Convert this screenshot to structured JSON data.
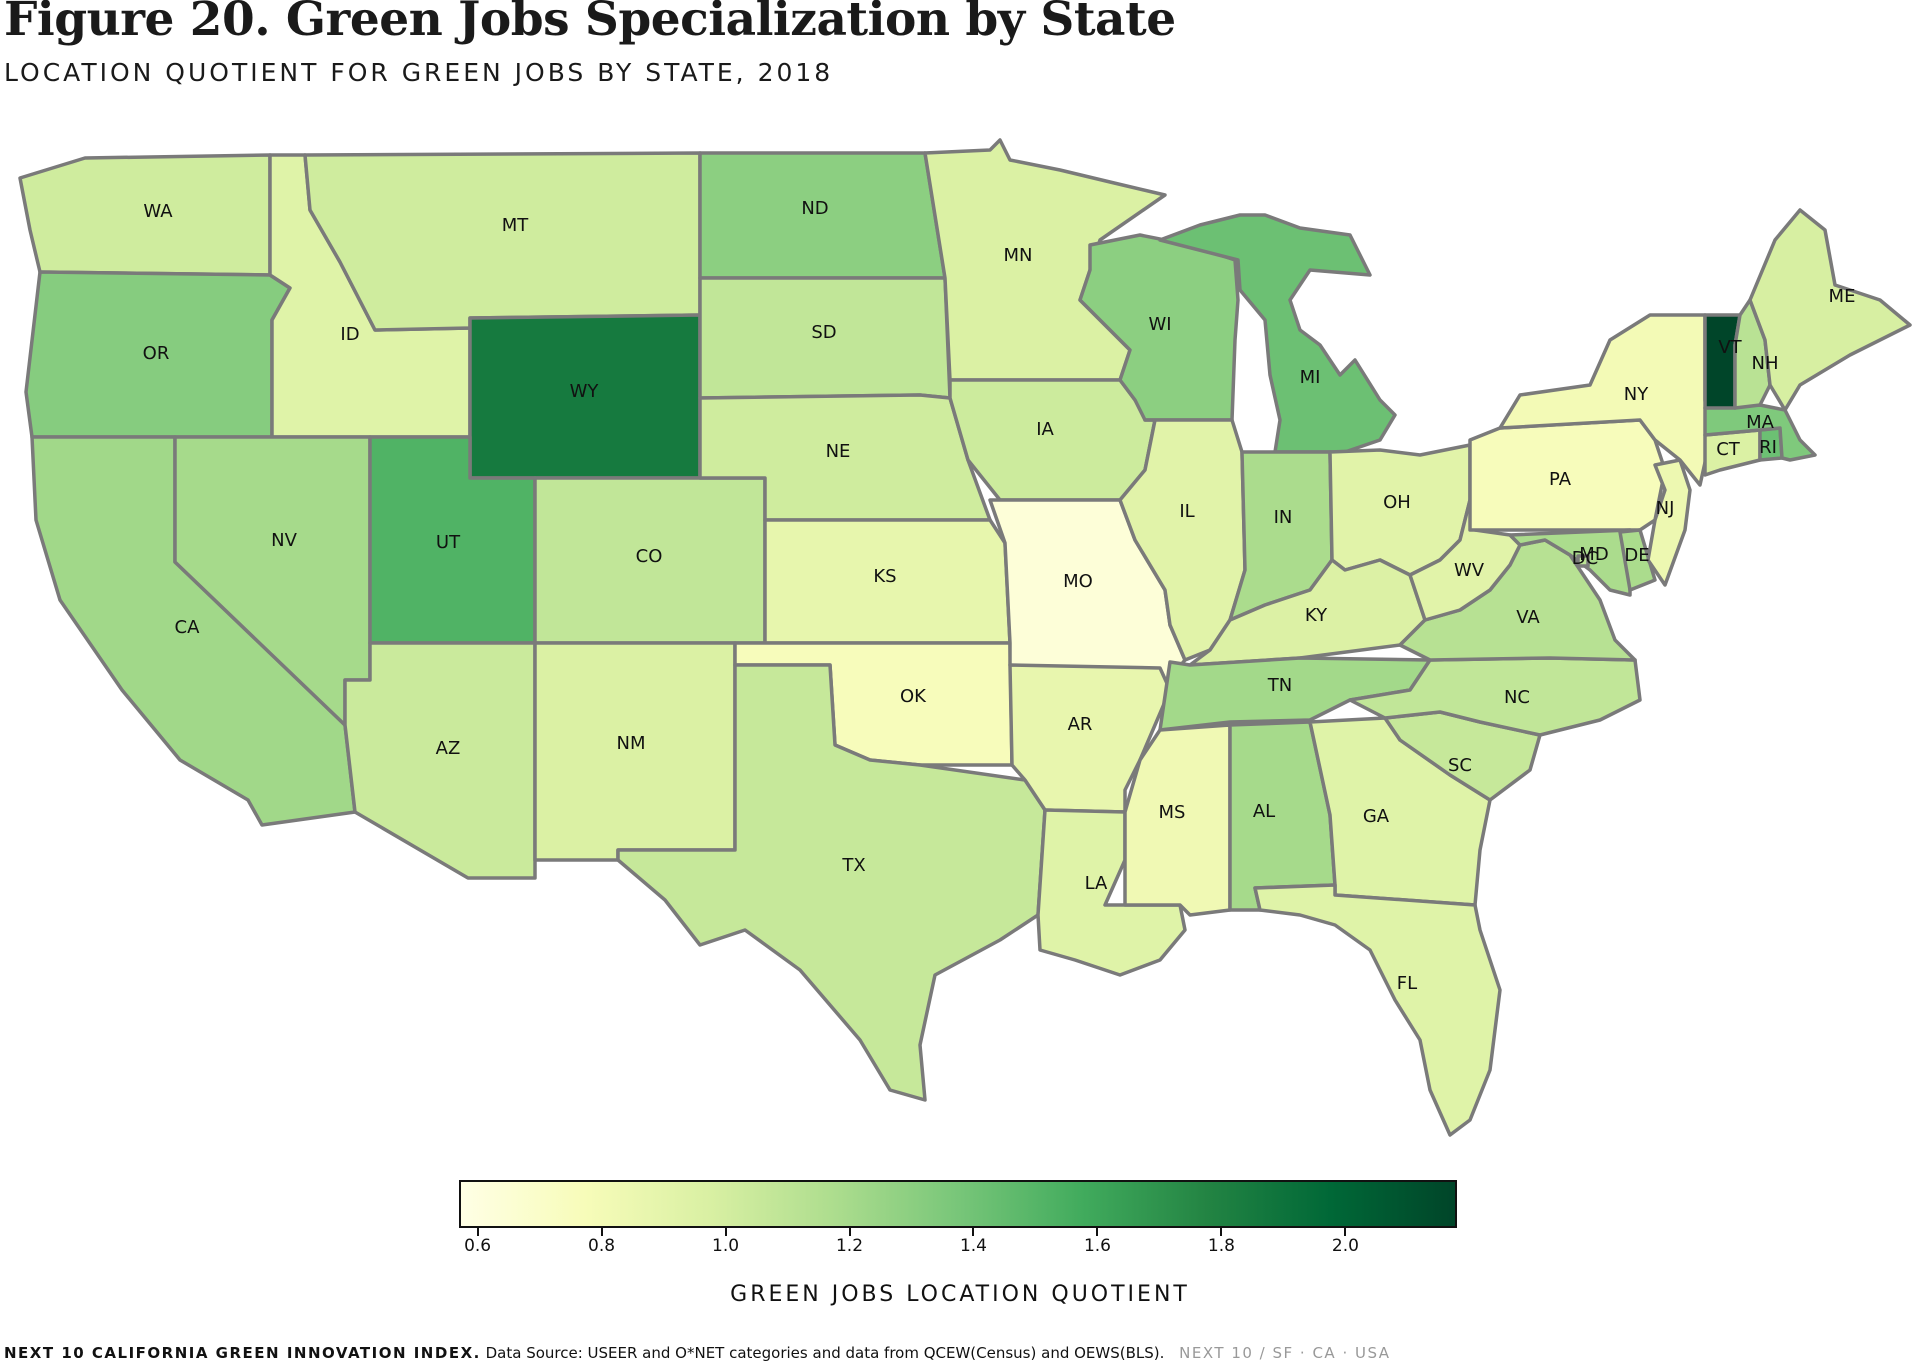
{
  "figure": {
    "title": "Figure 20. Green Jobs Specialization by State",
    "subtitle": "LOCATION QUOTIENT FOR GREEN JOBS BY STATE, 2018"
  },
  "colorbar": {
    "title": "GREEN JOBS LOCATION QUOTIENT",
    "min": 0.57,
    "max": 2.18,
    "ticks": [
      "0.6",
      "0.8",
      "1.0",
      "1.2",
      "1.4",
      "1.6",
      "1.8",
      "2.0"
    ],
    "colormap": "YlGn",
    "stops": [
      "#ffffe5",
      "#f7fcb9",
      "#d9f0a3",
      "#addd8e",
      "#78c679",
      "#41ab5d",
      "#238443",
      "#006837",
      "#004529"
    ]
  },
  "footer": {
    "source_label": "NEXT 10 CALIFORNIA GREEN INNOVATION INDEX.",
    "source_text": "Data Source: USEER and O*NET categories and data from QCEW(Census) and OEWS(BLS).",
    "brand": "NEXT 10  /  SF · CA · USA"
  },
  "chart_data": {
    "type": "choropleth",
    "states": [
      {
        "abbr": "WA",
        "value": 1.02
      },
      {
        "abbr": "OR",
        "value": 1.32
      },
      {
        "abbr": "CA",
        "value": 1.22
      },
      {
        "abbr": "ID",
        "value": 0.93
      },
      {
        "abbr": "NV",
        "value": 1.2
      },
      {
        "abbr": "MT",
        "value": 1.02
      },
      {
        "abbr": "WY",
        "value": 1.85
      },
      {
        "abbr": "UT",
        "value": 1.52
      },
      {
        "abbr": "AZ",
        "value": 1.04
      },
      {
        "abbr": "CO",
        "value": 1.08
      },
      {
        "abbr": "NM",
        "value": 0.96
      },
      {
        "abbr": "ND",
        "value": 1.3
      },
      {
        "abbr": "SD",
        "value": 1.08
      },
      {
        "abbr": "NE",
        "value": 1.02
      },
      {
        "abbr": "KS",
        "value": 0.88
      },
      {
        "abbr": "OK",
        "value": 0.76
      },
      {
        "abbr": "TX",
        "value": 1.06
      },
      {
        "abbr": "MN",
        "value": 0.96
      },
      {
        "abbr": "IA",
        "value": 1.03
      },
      {
        "abbr": "MO",
        "value": 0.63
      },
      {
        "abbr": "AR",
        "value": 0.87
      },
      {
        "abbr": "LA",
        "value": 0.93
      },
      {
        "abbr": "WI",
        "value": 1.3
      },
      {
        "abbr": "IL",
        "value": 0.92
      },
      {
        "abbr": "MI",
        "value": 1.42
      },
      {
        "abbr": "IN",
        "value": 1.18
      },
      {
        "abbr": "OH",
        "value": 0.92
      },
      {
        "abbr": "KY",
        "value": 0.95
      },
      {
        "abbr": "TN",
        "value": 1.21
      },
      {
        "abbr": "MS",
        "value": 0.82
      },
      {
        "abbr": "AL",
        "value": 1.2
      },
      {
        "abbr": "GA",
        "value": 0.93
      },
      {
        "abbr": "FL",
        "value": 0.93
      },
      {
        "abbr": "SC",
        "value": 1.06
      },
      {
        "abbr": "NC",
        "value": 1.08
      },
      {
        "abbr": "VA",
        "value": 1.13
      },
      {
        "abbr": "WV",
        "value": 0.92
      },
      {
        "abbr": "MD",
        "value": 1.18
      },
      {
        "abbr": "DE",
        "value": 1.18
      },
      {
        "abbr": "DC",
        "value": 1.1
      },
      {
        "abbr": "PA",
        "value": 0.76
      },
      {
        "abbr": "NJ",
        "value": 0.84
      },
      {
        "abbr": "NY",
        "value": 0.8
      },
      {
        "abbr": "CT",
        "value": 0.96
      },
      {
        "abbr": "RI",
        "value": 1.42
      },
      {
        "abbr": "MA",
        "value": 1.35
      },
      {
        "abbr": "VT",
        "value": 2.18
      },
      {
        "abbr": "NH",
        "value": 1.12
      },
      {
        "abbr": "ME",
        "value": 0.98
      }
    ]
  }
}
